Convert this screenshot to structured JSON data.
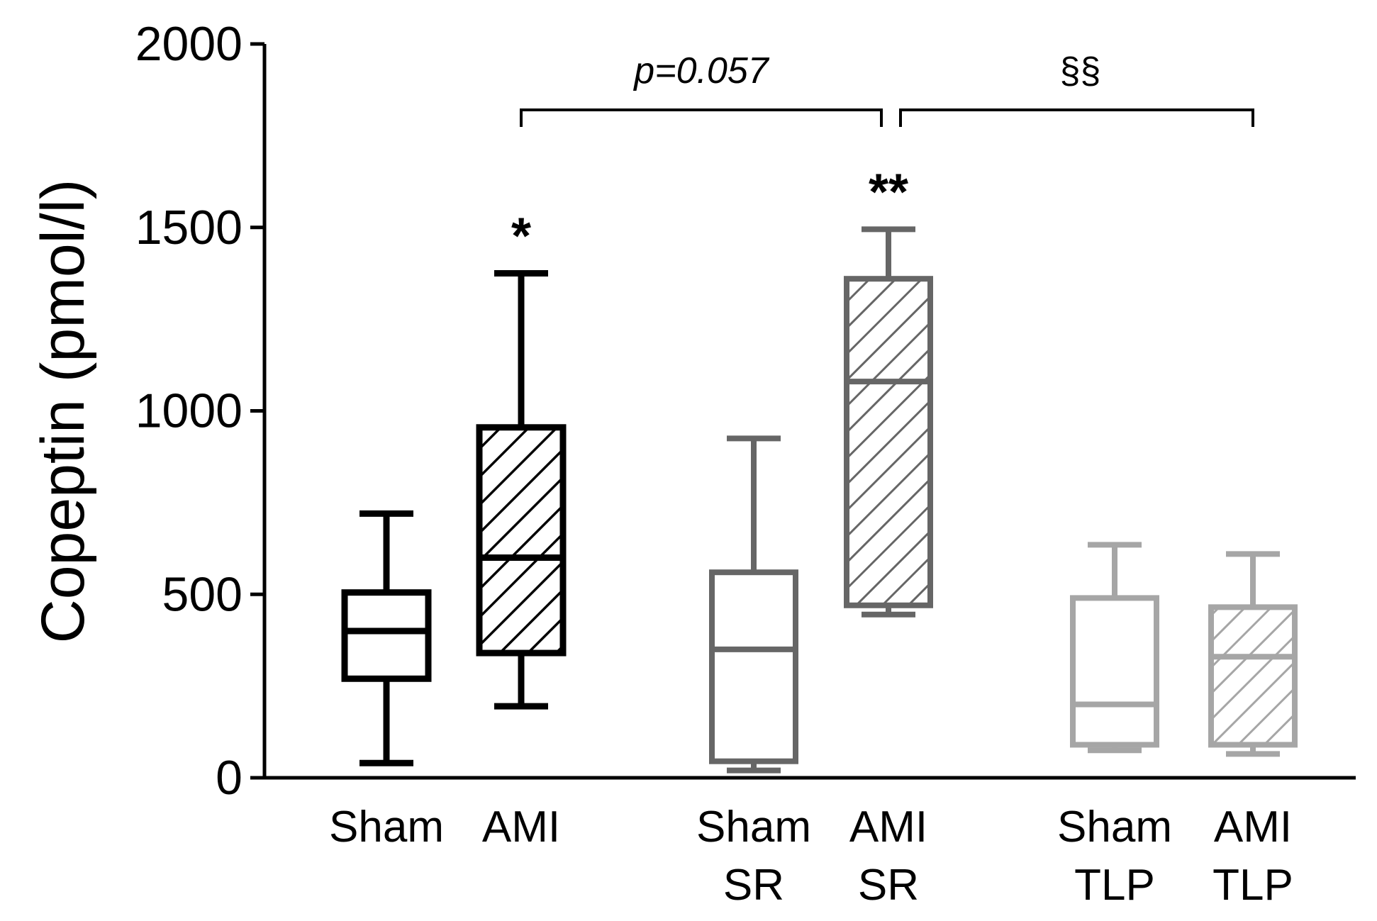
{
  "chart_data": {
    "type": "boxplot",
    "title": "",
    "xlabel": "",
    "ylabel": "Copeptin (pmol/l)",
    "ylim": [
      0,
      2000
    ],
    "yticks": [
      0,
      500,
      1000,
      1500,
      2000
    ],
    "grid": false,
    "series": [
      {
        "name": "Sham",
        "label_lines": [
          "Sham"
        ],
        "min": 40,
        "q1": 270,
        "median": 400,
        "q3": 505,
        "max": 720,
        "hatched": false,
        "color": "#000000"
      },
      {
        "name": "AMI",
        "label_lines": [
          "AMI"
        ],
        "min": 195,
        "q1": 340,
        "median": 600,
        "q3": 955,
        "max": 1375,
        "hatched": true,
        "color": "#000000",
        "marker": "*"
      },
      {
        "name": "Sham SR",
        "label_lines": [
          "Sham",
          "SR"
        ],
        "min": 20,
        "q1": 45,
        "median": 350,
        "q3": 560,
        "max": 925,
        "hatched": false,
        "color": "#666666"
      },
      {
        "name": "AMI SR",
        "label_lines": [
          "AMI",
          "SR"
        ],
        "min": 445,
        "q1": 470,
        "median": 1080,
        "q3": 1360,
        "max": 1495,
        "hatched": true,
        "color": "#666666",
        "marker": "**"
      },
      {
        "name": "Sham TLP",
        "label_lines": [
          "Sham",
          "TLP"
        ],
        "min": 75,
        "q1": 90,
        "median": 200,
        "q3": 490,
        "max": 635,
        "hatched": false,
        "color": "#a6a6a6"
      },
      {
        "name": "AMI TLP",
        "label_lines": [
          "AMI",
          "TLP"
        ],
        "min": 65,
        "q1": 90,
        "median": 330,
        "q3": 465,
        "max": 610,
        "hatched": true,
        "color": "#a6a6a6"
      }
    ],
    "comparisons": [
      {
        "from": "AMI",
        "to": "AMI SR",
        "label": "p=0.057",
        "at": 1830
      },
      {
        "from": "AMI SR",
        "to": "AMI TLP",
        "label": "§§",
        "at": 1830
      }
    ]
  }
}
